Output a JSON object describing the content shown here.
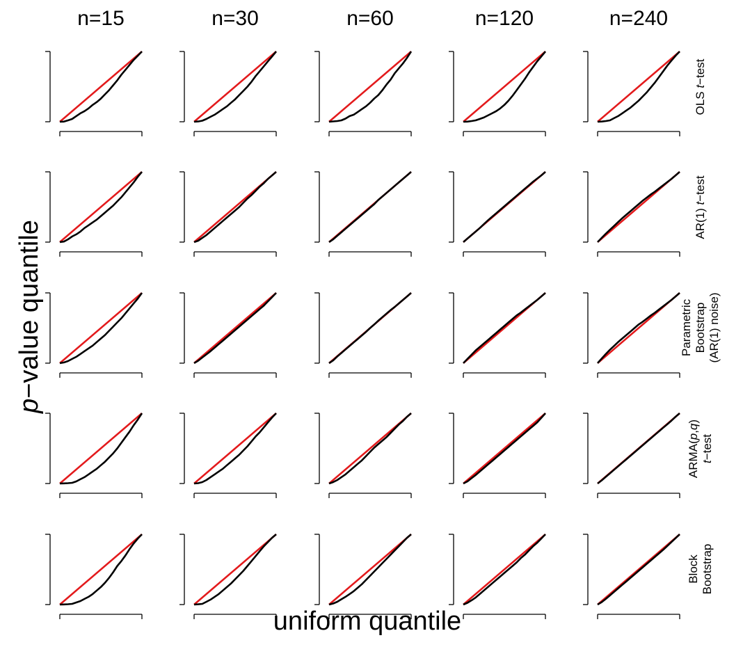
{
  "chart_data": {
    "type": "line",
    "layout": "facet-grid",
    "xlabel": "uniform quantile",
    "ylabel_italic": "p",
    "ylabel_rest": "−value quantile",
    "columns": [
      "n=15",
      "n=30",
      "n=60",
      "n=120",
      "n=240"
    ],
    "rows": [
      {
        "label_lines": [
          [
            {
              "t": "OLS "
            },
            {
              "t": "t",
              "i": true
            },
            {
              "t": "−test"
            }
          ]
        ]
      },
      {
        "label_lines": [
          [
            {
              "t": "AR(1) "
            },
            {
              "t": "t",
              "i": true
            },
            {
              "t": "−test"
            }
          ]
        ]
      },
      {
        "label_lines": [
          [
            {
              "t": "Parametric"
            }
          ],
          [
            {
              "t": "Bootstrap"
            }
          ],
          [
            {
              "t": "(AR(1) noise)"
            }
          ]
        ]
      },
      {
        "label_lines": [
          [
            {
              "t": "ARMA("
            },
            {
              "t": "p",
              "i": true
            },
            {
              "t": ","
            },
            {
              "t": "q",
              "i": true
            },
            {
              "t": ")"
            }
          ],
          [
            {
              "t": "t",
              "i": true
            },
            {
              "t": "−test"
            }
          ]
        ]
      },
      {
        "label_lines": [
          [
            {
              "t": "Block"
            }
          ],
          [
            {
              "t": "Bootstrap"
            }
          ]
        ]
      }
    ],
    "xlim": [
      0,
      1
    ],
    "ylim": [
      0,
      1
    ],
    "series_style": {
      "reference": {
        "name": "y = x",
        "color": "#e31a1c"
      },
      "observed": {
        "color": "#000000"
      }
    },
    "curve_x": [
      0,
      0.05,
      0.1,
      0.15,
      0.2,
      0.25,
      0.3,
      0.35,
      0.4,
      0.45,
      0.5,
      0.55,
      0.6,
      0.65,
      0.7,
      0.75,
      0.8,
      0.85,
      0.9,
      0.95,
      1.0
    ],
    "panels": [
      [
        [
          0,
          0.002,
          0.02,
          0.04,
          0.08,
          0.12,
          0.15,
          0.19,
          0.24,
          0.28,
          0.33,
          0.39,
          0.45,
          0.52,
          0.59,
          0.67,
          0.74,
          0.81,
          0.88,
          0.94,
          1.0
        ],
        [
          0,
          0.004,
          0.015,
          0.04,
          0.07,
          0.1,
          0.14,
          0.18,
          0.22,
          0.27,
          0.32,
          0.38,
          0.44,
          0.5,
          0.57,
          0.65,
          0.72,
          0.79,
          0.86,
          0.93,
          1.0
        ],
        [
          0,
          0.005,
          0.01,
          0.02,
          0.045,
          0.08,
          0.1,
          0.14,
          0.18,
          0.22,
          0.27,
          0.33,
          0.38,
          0.45,
          0.53,
          0.6,
          0.69,
          0.76,
          0.83,
          0.91,
          1.0
        ],
        [
          0,
          0.002,
          0.01,
          0.02,
          0.04,
          0.06,
          0.09,
          0.12,
          0.15,
          0.19,
          0.24,
          0.3,
          0.37,
          0.45,
          0.53,
          0.61,
          0.7,
          0.78,
          0.86,
          0.93,
          1.0
        ],
        [
          0,
          0.003,
          0.01,
          0.02,
          0.05,
          0.08,
          0.12,
          0.16,
          0.2,
          0.25,
          0.3,
          0.36,
          0.42,
          0.49,
          0.56,
          0.64,
          0.72,
          0.8,
          0.87,
          0.94,
          1.0
        ]
      ],
      [
        [
          0,
          0.008,
          0.04,
          0.08,
          0.11,
          0.15,
          0.2,
          0.24,
          0.28,
          0.32,
          0.37,
          0.42,
          0.47,
          0.52,
          0.58,
          0.64,
          0.71,
          0.78,
          0.85,
          0.93,
          1.0
        ],
        [
          0,
          0.02,
          0.06,
          0.1,
          0.15,
          0.2,
          0.25,
          0.3,
          0.35,
          0.4,
          0.45,
          0.5,
          0.56,
          0.62,
          0.67,
          0.73,
          0.79,
          0.84,
          0.9,
          0.95,
          1.0
        ],
        [
          0,
          0.04,
          0.09,
          0.14,
          0.19,
          0.24,
          0.29,
          0.34,
          0.39,
          0.44,
          0.49,
          0.54,
          0.6,
          0.65,
          0.7,
          0.75,
          0.8,
          0.85,
          0.9,
          0.95,
          1.0
        ],
        [
          0,
          0.05,
          0.1,
          0.15,
          0.2,
          0.255,
          0.31,
          0.36,
          0.41,
          0.46,
          0.51,
          0.56,
          0.61,
          0.66,
          0.71,
          0.76,
          0.81,
          0.86,
          0.905,
          0.95,
          1.0
        ],
        [
          0,
          0.06,
          0.12,
          0.175,
          0.23,
          0.285,
          0.34,
          0.39,
          0.44,
          0.49,
          0.54,
          0.59,
          0.635,
          0.68,
          0.72,
          0.765,
          0.81,
          0.855,
          0.9,
          0.95,
          1.0
        ]
      ],
      [
        [
          0,
          0.01,
          0.03,
          0.06,
          0.09,
          0.13,
          0.17,
          0.21,
          0.25,
          0.3,
          0.35,
          0.4,
          0.46,
          0.52,
          0.58,
          0.64,
          0.71,
          0.78,
          0.85,
          0.92,
          1.0
        ],
        [
          0,
          0.035,
          0.08,
          0.125,
          0.17,
          0.22,
          0.27,
          0.32,
          0.37,
          0.42,
          0.47,
          0.52,
          0.57,
          0.62,
          0.67,
          0.72,
          0.77,
          0.82,
          0.88,
          0.94,
          1.0
        ],
        [
          0,
          0.04,
          0.095,
          0.145,
          0.195,
          0.245,
          0.295,
          0.345,
          0.395,
          0.445,
          0.5,
          0.55,
          0.605,
          0.655,
          0.705,
          0.755,
          0.8,
          0.85,
          0.9,
          0.95,
          1.0
        ],
        [
          0,
          0.06,
          0.12,
          0.18,
          0.23,
          0.28,
          0.33,
          0.38,
          0.43,
          0.48,
          0.53,
          0.58,
          0.63,
          0.68,
          0.72,
          0.765,
          0.81,
          0.855,
          0.9,
          0.95,
          1.0
        ],
        [
          0,
          0.065,
          0.13,
          0.19,
          0.245,
          0.3,
          0.35,
          0.4,
          0.45,
          0.5,
          0.55,
          0.59,
          0.635,
          0.68,
          0.72,
          0.765,
          0.81,
          0.855,
          0.9,
          0.95,
          1.0
        ]
      ],
      [
        [
          0,
          0.002,
          0.005,
          0.01,
          0.03,
          0.06,
          0.09,
          0.13,
          0.17,
          0.21,
          0.26,
          0.31,
          0.37,
          0.43,
          0.5,
          0.58,
          0.66,
          0.74,
          0.83,
          0.91,
          1.0
        ],
        [
          0,
          0.005,
          0.02,
          0.05,
          0.09,
          0.13,
          0.17,
          0.21,
          0.26,
          0.31,
          0.36,
          0.41,
          0.47,
          0.53,
          0.6,
          0.67,
          0.73,
          0.8,
          0.87,
          0.94,
          1.0
        ],
        [
          0,
          0.02,
          0.05,
          0.09,
          0.13,
          0.18,
          0.23,
          0.28,
          0.33,
          0.39,
          0.45,
          0.51,
          0.56,
          0.61,
          0.66,
          0.72,
          0.78,
          0.84,
          0.89,
          0.95,
          1.0
        ],
        [
          0,
          0.03,
          0.075,
          0.12,
          0.17,
          0.22,
          0.27,
          0.32,
          0.37,
          0.42,
          0.47,
          0.52,
          0.57,
          0.62,
          0.67,
          0.72,
          0.77,
          0.82,
          0.87,
          0.935,
          1.0
        ],
        [
          0,
          0.045,
          0.095,
          0.145,
          0.195,
          0.245,
          0.295,
          0.345,
          0.395,
          0.445,
          0.495,
          0.545,
          0.595,
          0.645,
          0.695,
          0.745,
          0.795,
          0.845,
          0.895,
          0.95,
          1.0
        ]
      ],
      [
        [
          0,
          0.002,
          0.005,
          0.01,
          0.03,
          0.05,
          0.08,
          0.11,
          0.15,
          0.2,
          0.25,
          0.31,
          0.38,
          0.46,
          0.55,
          0.62,
          0.7,
          0.79,
          0.87,
          0.94,
          1.0
        ],
        [
          0,
          0.004,
          0.01,
          0.04,
          0.07,
          0.11,
          0.15,
          0.2,
          0.25,
          0.3,
          0.36,
          0.42,
          0.48,
          0.55,
          0.62,
          0.69,
          0.76,
          0.83,
          0.89,
          0.95,
          1.0
        ],
        [
          0,
          0.015,
          0.04,
          0.075,
          0.11,
          0.15,
          0.19,
          0.24,
          0.29,
          0.35,
          0.41,
          0.47,
          0.53,
          0.59,
          0.65,
          0.71,
          0.77,
          0.83,
          0.89,
          0.95,
          1.0
        ],
        [
          0,
          0.025,
          0.06,
          0.1,
          0.15,
          0.2,
          0.25,
          0.3,
          0.35,
          0.4,
          0.45,
          0.5,
          0.55,
          0.6,
          0.66,
          0.71,
          0.77,
          0.83,
          0.88,
          0.94,
          1.0
        ],
        [
          0,
          0.035,
          0.08,
          0.13,
          0.18,
          0.23,
          0.28,
          0.33,
          0.38,
          0.43,
          0.48,
          0.53,
          0.58,
          0.63,
          0.68,
          0.73,
          0.78,
          0.835,
          0.89,
          0.945,
          1.0
        ]
      ]
    ]
  }
}
